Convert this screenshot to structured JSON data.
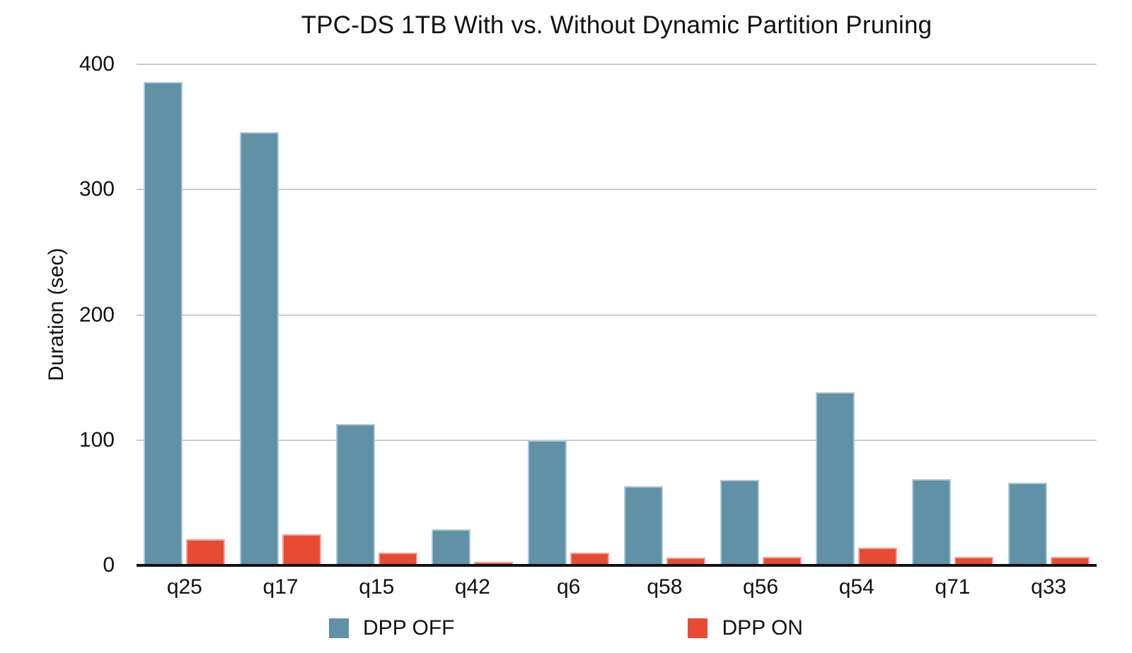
{
  "title": "TPC-DS 1TB With vs. Without Dynamic Partition Pruning",
  "colors": {
    "background": "#ffffff",
    "grid": "#c9cdd0",
    "axis": "#111111",
    "text": "#000000",
    "dpp_off": "#6191a7",
    "dpp_on": "#e74b33"
  },
  "chart_data": {
    "type": "bar",
    "title": "TPC-DS 1TB With vs. Without Dynamic Partition Pruning",
    "xlabel": "",
    "ylabel": "Duration (sec)",
    "ylim": [
      0,
      400
    ],
    "yticks": [
      0,
      100,
      200,
      300,
      400
    ],
    "grid": true,
    "legend_position": "bottom",
    "categories": [
      "q25",
      "q17",
      "q15",
      "q42",
      "q6",
      "q58",
      "q56",
      "q54",
      "q71",
      "q33"
    ],
    "series": [
      {
        "name": "DPP OFF",
        "color": "#6191a7",
        "values": [
          386,
          346,
          113,
          29,
          100,
          63,
          68,
          138,
          69,
          66
        ]
      },
      {
        "name": "DPP ON",
        "color": "#e74b33",
        "values": [
          21,
          25,
          10,
          3,
          10,
          6,
          7,
          14,
          7,
          7
        ]
      }
    ]
  }
}
